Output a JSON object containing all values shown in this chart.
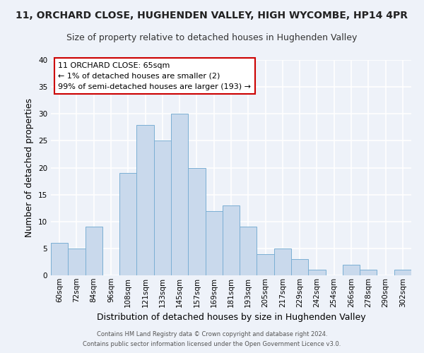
{
  "title": "11, ORCHARD CLOSE, HUGHENDEN VALLEY, HIGH WYCOMBE, HP14 4PR",
  "subtitle": "Size of property relative to detached houses in Hughenden Valley",
  "xlabel": "Distribution of detached houses by size in Hughenden Valley",
  "ylabel": "Number of detached properties",
  "bin_labels": [
    "60sqm",
    "72sqm",
    "84sqm",
    "96sqm",
    "108sqm",
    "121sqm",
    "133sqm",
    "145sqm",
    "157sqm",
    "169sqm",
    "181sqm",
    "193sqm",
    "205sqm",
    "217sqm",
    "229sqm",
    "242sqm",
    "254sqm",
    "266sqm",
    "278sqm",
    "290sqm",
    "302sqm"
  ],
  "bar_values": [
    6,
    5,
    9,
    0,
    19,
    28,
    25,
    30,
    20,
    12,
    13,
    9,
    4,
    5,
    3,
    1,
    0,
    2,
    1,
    0,
    1
  ],
  "bar_color": "#c9d9ec",
  "bar_edge_color": "#7bafd4",
  "ylim": [
    0,
    40
  ],
  "yticks": [
    0,
    5,
    10,
    15,
    20,
    25,
    30,
    35,
    40
  ],
  "annotation_title": "11 ORCHARD CLOSE: 65sqm",
  "annotation_line1": "← 1% of detached houses are smaller (2)",
  "annotation_line2": "99% of semi-detached houses are larger (193) →",
  "annotation_box_color": "#ffffff",
  "annotation_box_edge": "#cc0000",
  "footnote1": "Contains HM Land Registry data © Crown copyright and database right 2024.",
  "footnote2": "Contains public sector information licensed under the Open Government Licence v3.0.",
  "background_color": "#eef2f9",
  "grid_color": "#ffffff",
  "title_fontsize": 10,
  "subtitle_fontsize": 9,
  "axis_label_fontsize": 9,
  "tick_fontsize": 7.5,
  "annotation_fontsize": 8,
  "footnote_fontsize": 6
}
